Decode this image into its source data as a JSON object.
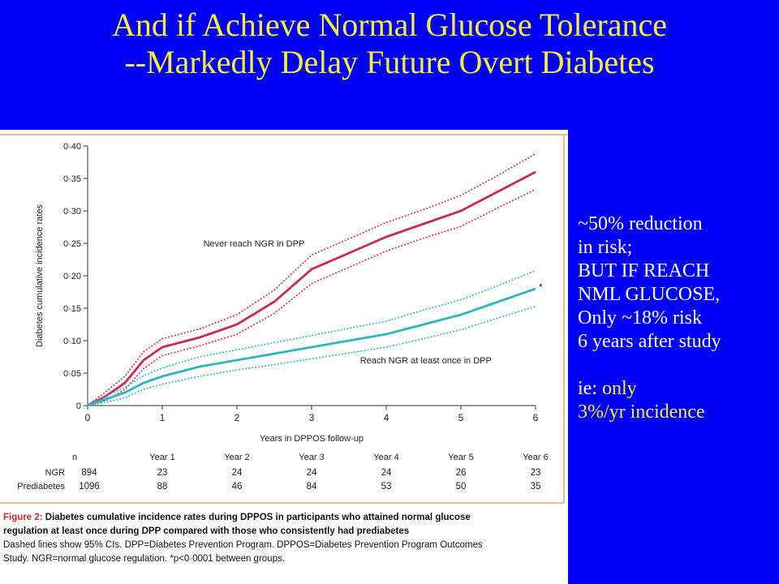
{
  "slide": {
    "title_line1": "And if Achieve Normal Glucose Tolerance",
    "title_line2": "--Markedly Delay Future Overt Diabetes",
    "notes": {
      "line1": "~50% reduction",
      "line2": "in risk;",
      "line3": "BUT IF REACH",
      "line4": "NML GLUCOSE,",
      "line5": "Only ~18% risk",
      "line6": "6 years after study",
      "line7_prefix": "ie: ",
      "line7_highlight": "only",
      "line8": "3%/yr incidence"
    }
  },
  "colors": {
    "background": "#0000f6",
    "title": "#f4ee38",
    "never_series": "#cc2a4c",
    "reach_series": "#2bb6c6",
    "caption_label": "#c8282e"
  },
  "chart_data": {
    "type": "line",
    "ylabel": "Diabetes cumulative incidence rates",
    "xlabel": "Years in DPPOS follow-up",
    "xlim": [
      0,
      6
    ],
    "ylim": [
      0,
      0.4
    ],
    "x_ticks": [
      "0",
      "1",
      "2",
      "3",
      "4",
      "5",
      "6"
    ],
    "y_ticks": [
      "0",
      "0·05",
      "0·10",
      "0·15",
      "0·20",
      "0·25",
      "0·30",
      "0·35",
      "0·40"
    ],
    "grid": false,
    "significance_marker": "*",
    "series": [
      {
        "name": "Never reach NGR in DPP",
        "x": [
          0,
          0.25,
          0.5,
          0.75,
          1,
          1.5,
          2,
          2.5,
          3,
          3.5,
          4,
          4.5,
          5,
          5.5,
          6
        ],
        "y": [
          0,
          0.015,
          0.035,
          0.07,
          0.09,
          0.105,
          0.125,
          0.16,
          0.21,
          0.235,
          0.26,
          0.28,
          0.3,
          0.33,
          0.36
        ],
        "ci_lower": [
          0,
          0.008,
          0.025,
          0.057,
          0.077,
          0.092,
          0.11,
          0.142,
          0.188,
          0.213,
          0.238,
          0.258,
          0.276,
          0.305,
          0.333
        ],
        "ci_upper": [
          0,
          0.022,
          0.045,
          0.083,
          0.103,
          0.118,
          0.14,
          0.178,
          0.232,
          0.257,
          0.282,
          0.302,
          0.324,
          0.355,
          0.388
        ]
      },
      {
        "name": "Reach NGR at least once in DPP",
        "x": [
          0,
          0.25,
          0.5,
          0.75,
          1,
          1.5,
          2,
          2.5,
          3,
          3.5,
          4,
          4.5,
          5,
          5.5,
          6
        ],
        "y": [
          0,
          0.01,
          0.02,
          0.035,
          0.045,
          0.06,
          0.07,
          0.08,
          0.09,
          0.1,
          0.11,
          0.125,
          0.14,
          0.16,
          0.18
        ],
        "ci_lower": [
          0,
          0.005,
          0.012,
          0.025,
          0.033,
          0.045,
          0.055,
          0.063,
          0.072,
          0.081,
          0.09,
          0.103,
          0.117,
          0.135,
          0.153
        ],
        "ci_upper": [
          0,
          0.015,
          0.028,
          0.046,
          0.058,
          0.075,
          0.086,
          0.097,
          0.108,
          0.119,
          0.13,
          0.147,
          0.163,
          0.185,
          0.208
        ]
      }
    ],
    "at_risk_table": {
      "header": [
        "n",
        "Year 1",
        "Year 2",
        "Year 3",
        "Year 4",
        "Year 5",
        "Year 6"
      ],
      "rows": [
        {
          "label": "NGR",
          "values": [
            "894",
            "23",
            "24",
            "24",
            "24",
            "26",
            "23"
          ]
        },
        {
          "label": "Prediabetes",
          "values": [
            "1096",
            "88",
            "46",
            "84",
            "53",
            "50",
            "35"
          ]
        }
      ]
    }
  },
  "caption": {
    "label": "Figure 2:",
    "title_line1": " Diabetes cumulative incidence rates during DPPOS in participants who attained normal glucose",
    "title_line2": "regulation at least once during DPP compared with those who consistently had prediabetes",
    "note_line1": "Dashed lines show 95% CIs. DPP=Diabetes Prevention Program. DPPOS=Diabetes Prevention Program Outcomes",
    "note_line2": "Study. NGR=normal glucose regulation. *p<0·0001 between groups."
  }
}
